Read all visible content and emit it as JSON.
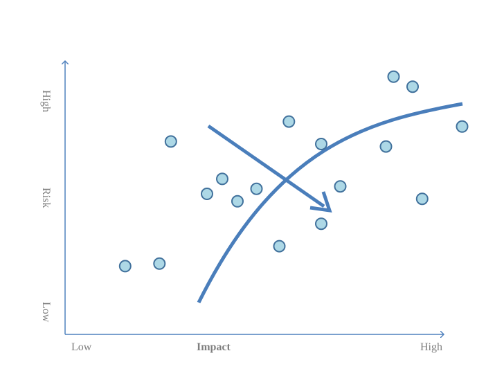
{
  "axes": {
    "x_low": "Low",
    "x_title": "Impact",
    "x_high": "High",
    "y_high": "High",
    "y_mid": "Risk",
    "y_low": "Low"
  },
  "colors": {
    "axis": "#4f81bd",
    "point_fill": "#add8e6",
    "point_stroke": "#41719c",
    "curve": "#4a7ebb",
    "label": "#7f7f7f"
  },
  "chart_data": {
    "type": "scatter",
    "xlabel": "Impact",
    "ylabel": "Risk",
    "xlim": [
      0,
      100
    ],
    "ylim": [
      0,
      100
    ],
    "points": [
      {
        "x": 12.5,
        "y": 21
      },
      {
        "x": 21.5,
        "y": 22
      },
      {
        "x": 24.5,
        "y": 71
      },
      {
        "x": 34,
        "y": 50
      },
      {
        "x": 38,
        "y": 56
      },
      {
        "x": 42,
        "y": 47
      },
      {
        "x": 47,
        "y": 52
      },
      {
        "x": 53,
        "y": 29
      },
      {
        "x": 55.5,
        "y": 79
      },
      {
        "x": 64,
        "y": 38
      },
      {
        "x": 64,
        "y": 70
      },
      {
        "x": 69,
        "y": 53
      },
      {
        "x": 81,
        "y": 69
      },
      {
        "x": 83,
        "y": 97
      },
      {
        "x": 88,
        "y": 93
      },
      {
        "x": 90.5,
        "y": 48
      },
      {
        "x": 101,
        "y": 77
      }
    ],
    "grid": false,
    "legend": "none"
  }
}
